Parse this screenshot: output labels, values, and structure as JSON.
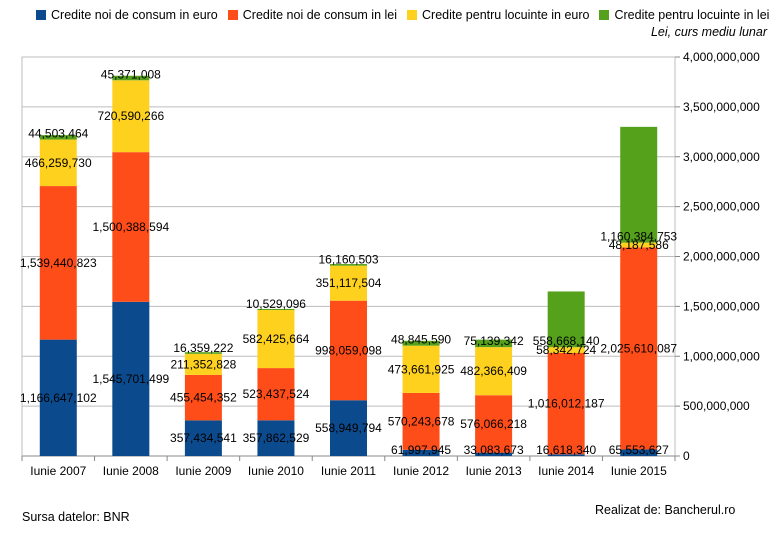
{
  "legend": {
    "items": [
      {
        "label": "Credite noi de consum in euro",
        "color": "#0b4a8c"
      },
      {
        "label": "Credite noi de consum in lei",
        "color": "#ff4d1a"
      },
      {
        "label": "Credite pentru locuinte in euro",
        "color": "#ffd11f"
      },
      {
        "label": "Credite pentru locuinte in lei",
        "color": "#56a11c"
      }
    ]
  },
  "unit_label": "Lei, curs mediu lunar",
  "source": "Sursa datelor: BNR",
  "credit": "Realizat de: Bancherul.ro",
  "chart_data": {
    "type": "bar",
    "stacked": true,
    "y_axis_side": "right",
    "grid": true,
    "legend_position": "top",
    "ylim": [
      0,
      4000000000
    ],
    "y_ticks": [
      "0",
      "500,000,000",
      "1,000,000,000",
      "1,500,000,000",
      "2,000,000,000",
      "2,500,000,000",
      "3,000,000,000",
      "3,500,000,000",
      "4,000,000,000"
    ],
    "categories": [
      "Iunie 2007",
      "Iunie 2008",
      "Iunie 2009",
      "Iunie 2010",
      "Iunie 2011",
      "Iunie 2012",
      "Iunie 2013",
      "Iunie 2014",
      "Iunie 2015"
    ],
    "series": [
      {
        "name": "Credite noi de consum in euro",
        "color": "#0b4a8c",
        "values": [
          1166647102,
          1545701499,
          357434541,
          357862529,
          558949794,
          61997945,
          33083673,
          16618340,
          65553627
        ],
        "labels": [
          "1,166,647,102",
          "1,545,701,499",
          "357,434,541",
          "357,862,529",
          "558,949,794",
          "61,997,945",
          "33,083,673",
          "16,618,340",
          "65,553,627"
        ]
      },
      {
        "name": "Credite noi de consum in lei",
        "color": "#ff4d1a",
        "values": [
          1539440823,
          1500388594,
          455454352,
          523437524,
          998059098,
          570243678,
          576066218,
          1016012187,
          2025610087
        ],
        "labels": [
          "1,539,440,823",
          "1,500,388,594",
          "455,454,352",
          "523,437,524",
          "998,059,098",
          "570,243,678",
          "576,066,218",
          "1,016,012,187",
          "2,025,610,087"
        ]
      },
      {
        "name": "Credite pentru locuinte in euro",
        "color": "#ffd11f",
        "values": [
          466259730,
          720590266,
          211352828,
          582425664,
          351117504,
          473661925,
          482366409,
          58342724,
          48187586
        ],
        "labels": [
          "466,259,730",
          "720,590,266",
          "211,352,828",
          "582,425,664",
          "351,117,504",
          "473,661,925",
          "482,366,409",
          "58,342,724",
          "48,187,586"
        ]
      },
      {
        "name": "Credite pentru locuinte in lei",
        "color": "#56a11c",
        "values": [
          44503464,
          45371008,
          16359222,
          10529096,
          16160503,
          48845590,
          75139342,
          558668140,
          1160384753
        ],
        "labels": [
          "44,503,464",
          "45,371,008",
          "16,359,222",
          "10,529,096",
          "16,160,503",
          "48,845,590",
          "75,139,342",
          "558,668,140",
          "1,160,384,753"
        ]
      }
    ]
  }
}
